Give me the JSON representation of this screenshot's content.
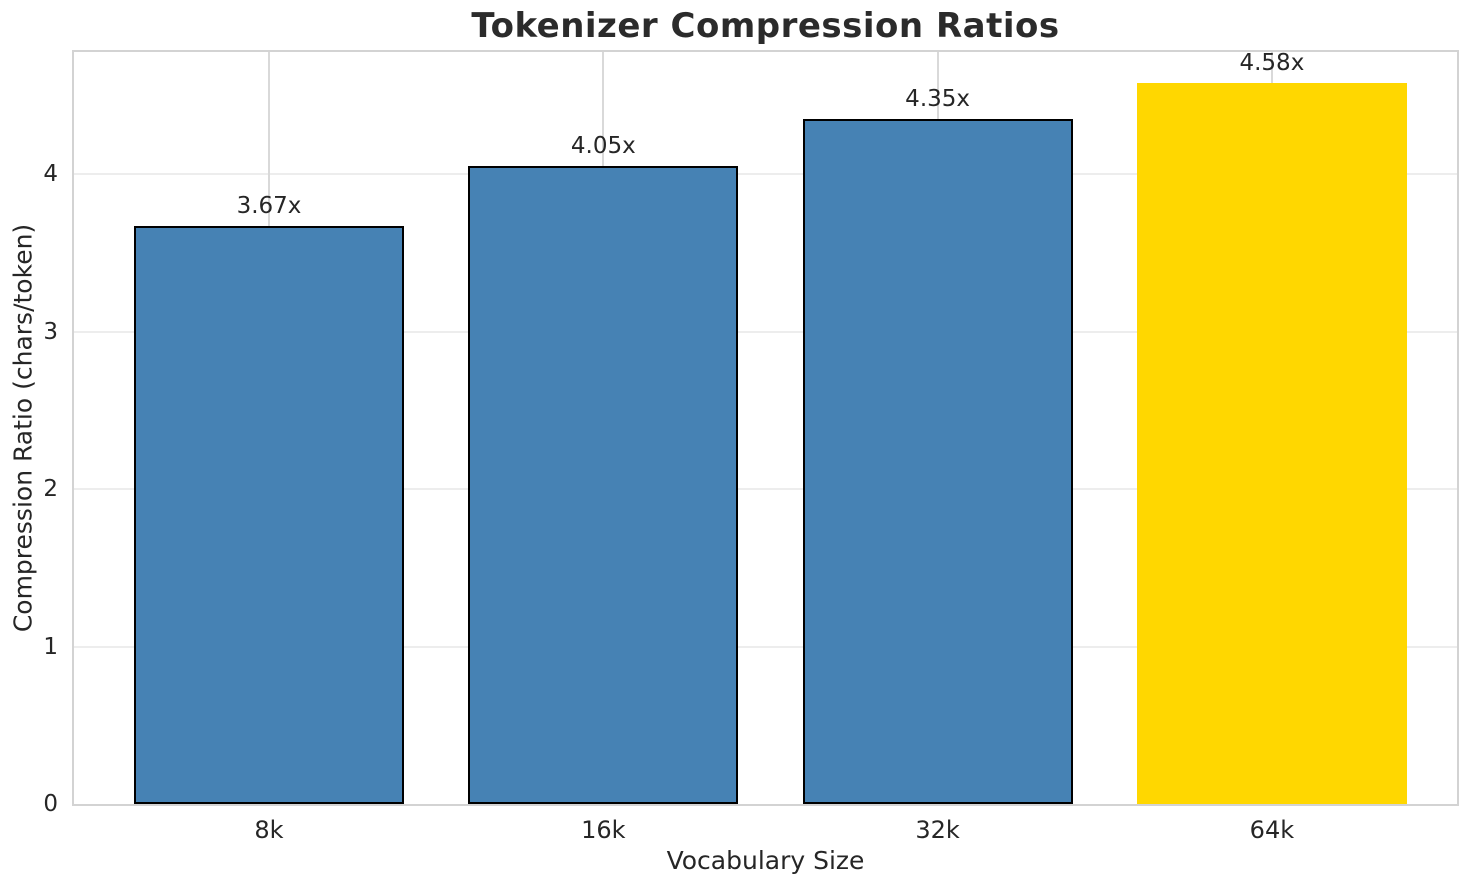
{
  "chart_data": {
    "type": "bar",
    "title": "Tokenizer Compression Ratios",
    "xlabel": "Vocabulary Size",
    "ylabel": "Compression Ratio (chars/token)",
    "categories": [
      "8k",
      "16k",
      "32k",
      "64k"
    ],
    "values": [
      3.67,
      4.05,
      4.35,
      4.58
    ],
    "bar_labels": [
      "3.67x",
      "4.05x",
      "4.35x",
      "4.58x"
    ],
    "bar_colors": [
      "#4682b4",
      "#4682b4",
      "#4682b4",
      "#ffd700"
    ],
    "bar_edge_colors": [
      "#000000",
      "#000000",
      "#000000",
      "#ffd700"
    ],
    "highlight_index": 3,
    "ylim": [
      0,
      4.8
    ],
    "yticks": [
      0,
      1,
      2,
      3,
      4
    ],
    "grid": "both",
    "legend_position": "none",
    "colors": {
      "bar_default": "#4682b4",
      "bar_highlight": "#ffd700",
      "bar_edge": "#000000",
      "text": "#262626",
      "spine": "#d3d3d3",
      "grid_horizontal": "#ededed",
      "grid_vertical": "#d9d9d9",
      "background": "#ffffff"
    }
  }
}
